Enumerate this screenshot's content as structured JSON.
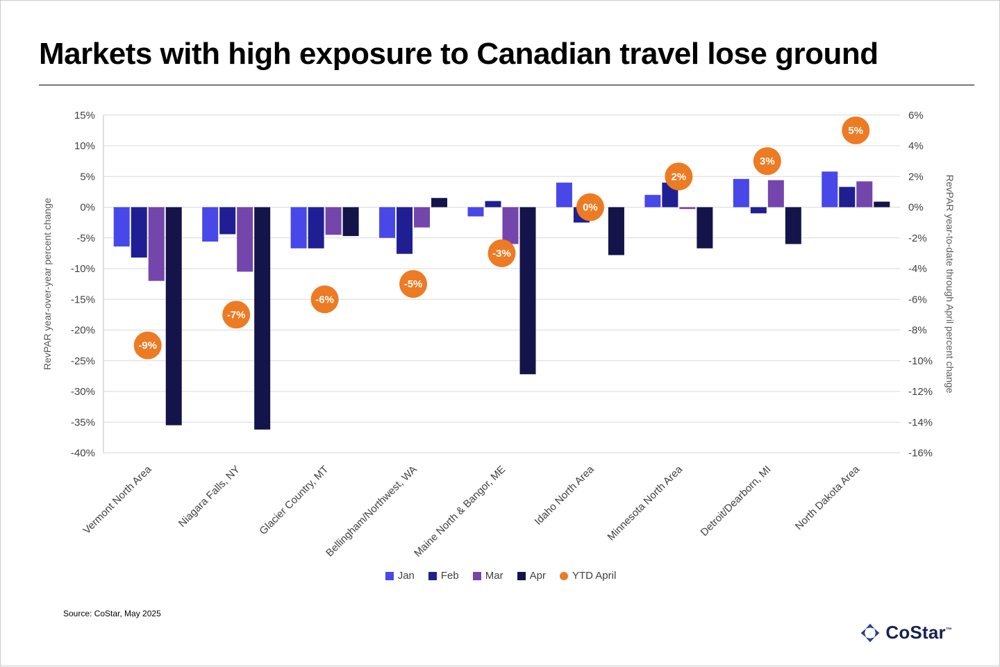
{
  "title": "Markets with high exposure to Canadian travel lose ground",
  "source": "Source: CoStar, May 2025",
  "logo": {
    "text": "CoStar",
    "tm": "™"
  },
  "chart_data": {
    "type": "bar",
    "categories": [
      "Vermont North Area",
      "Niagara Falls, NY",
      "Glacier Country, MT",
      "Bellingham/Northwest, WA",
      "Maine North & Bangor, ME",
      "Idaho North Area",
      "Minnesota North Area",
      "Detroit/Dearborn, MI",
      "North Dakota Area"
    ],
    "series": [
      {
        "name": "Jan",
        "color": "#4848e8",
        "values": [
          -6.4,
          -5.6,
          -6.7,
          -5.0,
          -1.5,
          4.0,
          2.0,
          4.6,
          5.8
        ]
      },
      {
        "name": "Feb",
        "color": "#1f1f93",
        "values": [
          -8.2,
          -4.4,
          -6.7,
          -7.6,
          1.0,
          -2.5,
          4.0,
          -1.0,
          3.3
        ]
      },
      {
        "name": "Mar",
        "color": "#7445ab",
        "values": [
          -12.0,
          -10.5,
          -4.5,
          -3.3,
          -6.0,
          0,
          -0.3,
          4.4,
          4.2
        ]
      },
      {
        "name": "Apr",
        "color": "#14144a",
        "values": [
          -35.5,
          -36.2,
          -4.7,
          1.5,
          -27.2,
          -7.8,
          -6.7,
          -6.0,
          0.9
        ]
      }
    ],
    "ytd": {
      "name": "YTD April",
      "color": "#ec7b24",
      "values": [
        -9,
        -7,
        -6,
        -5,
        -3,
        0,
        2,
        3,
        5
      ],
      "labels": [
        "-9%",
        "-7%",
        "-6%",
        "-5%",
        "-3%",
        "0%",
        "2%",
        "3%",
        "5%"
      ]
    },
    "left_axis": {
      "label": "RevPAR year-over-year percent change",
      "min": -40,
      "max": 15,
      "step": 5,
      "tick_suffix": "%"
    },
    "right_axis": {
      "label": "RevPAR year-to-date through April percent change",
      "min": -16,
      "max": 6,
      "step": 2,
      "tick_suffix": "%",
      "scale_to_left": 2.5
    },
    "grid": true,
    "legend_position": "bottom",
    "legend": [
      "Jan",
      "Feb",
      "Mar",
      "Apr",
      "YTD April"
    ]
  }
}
